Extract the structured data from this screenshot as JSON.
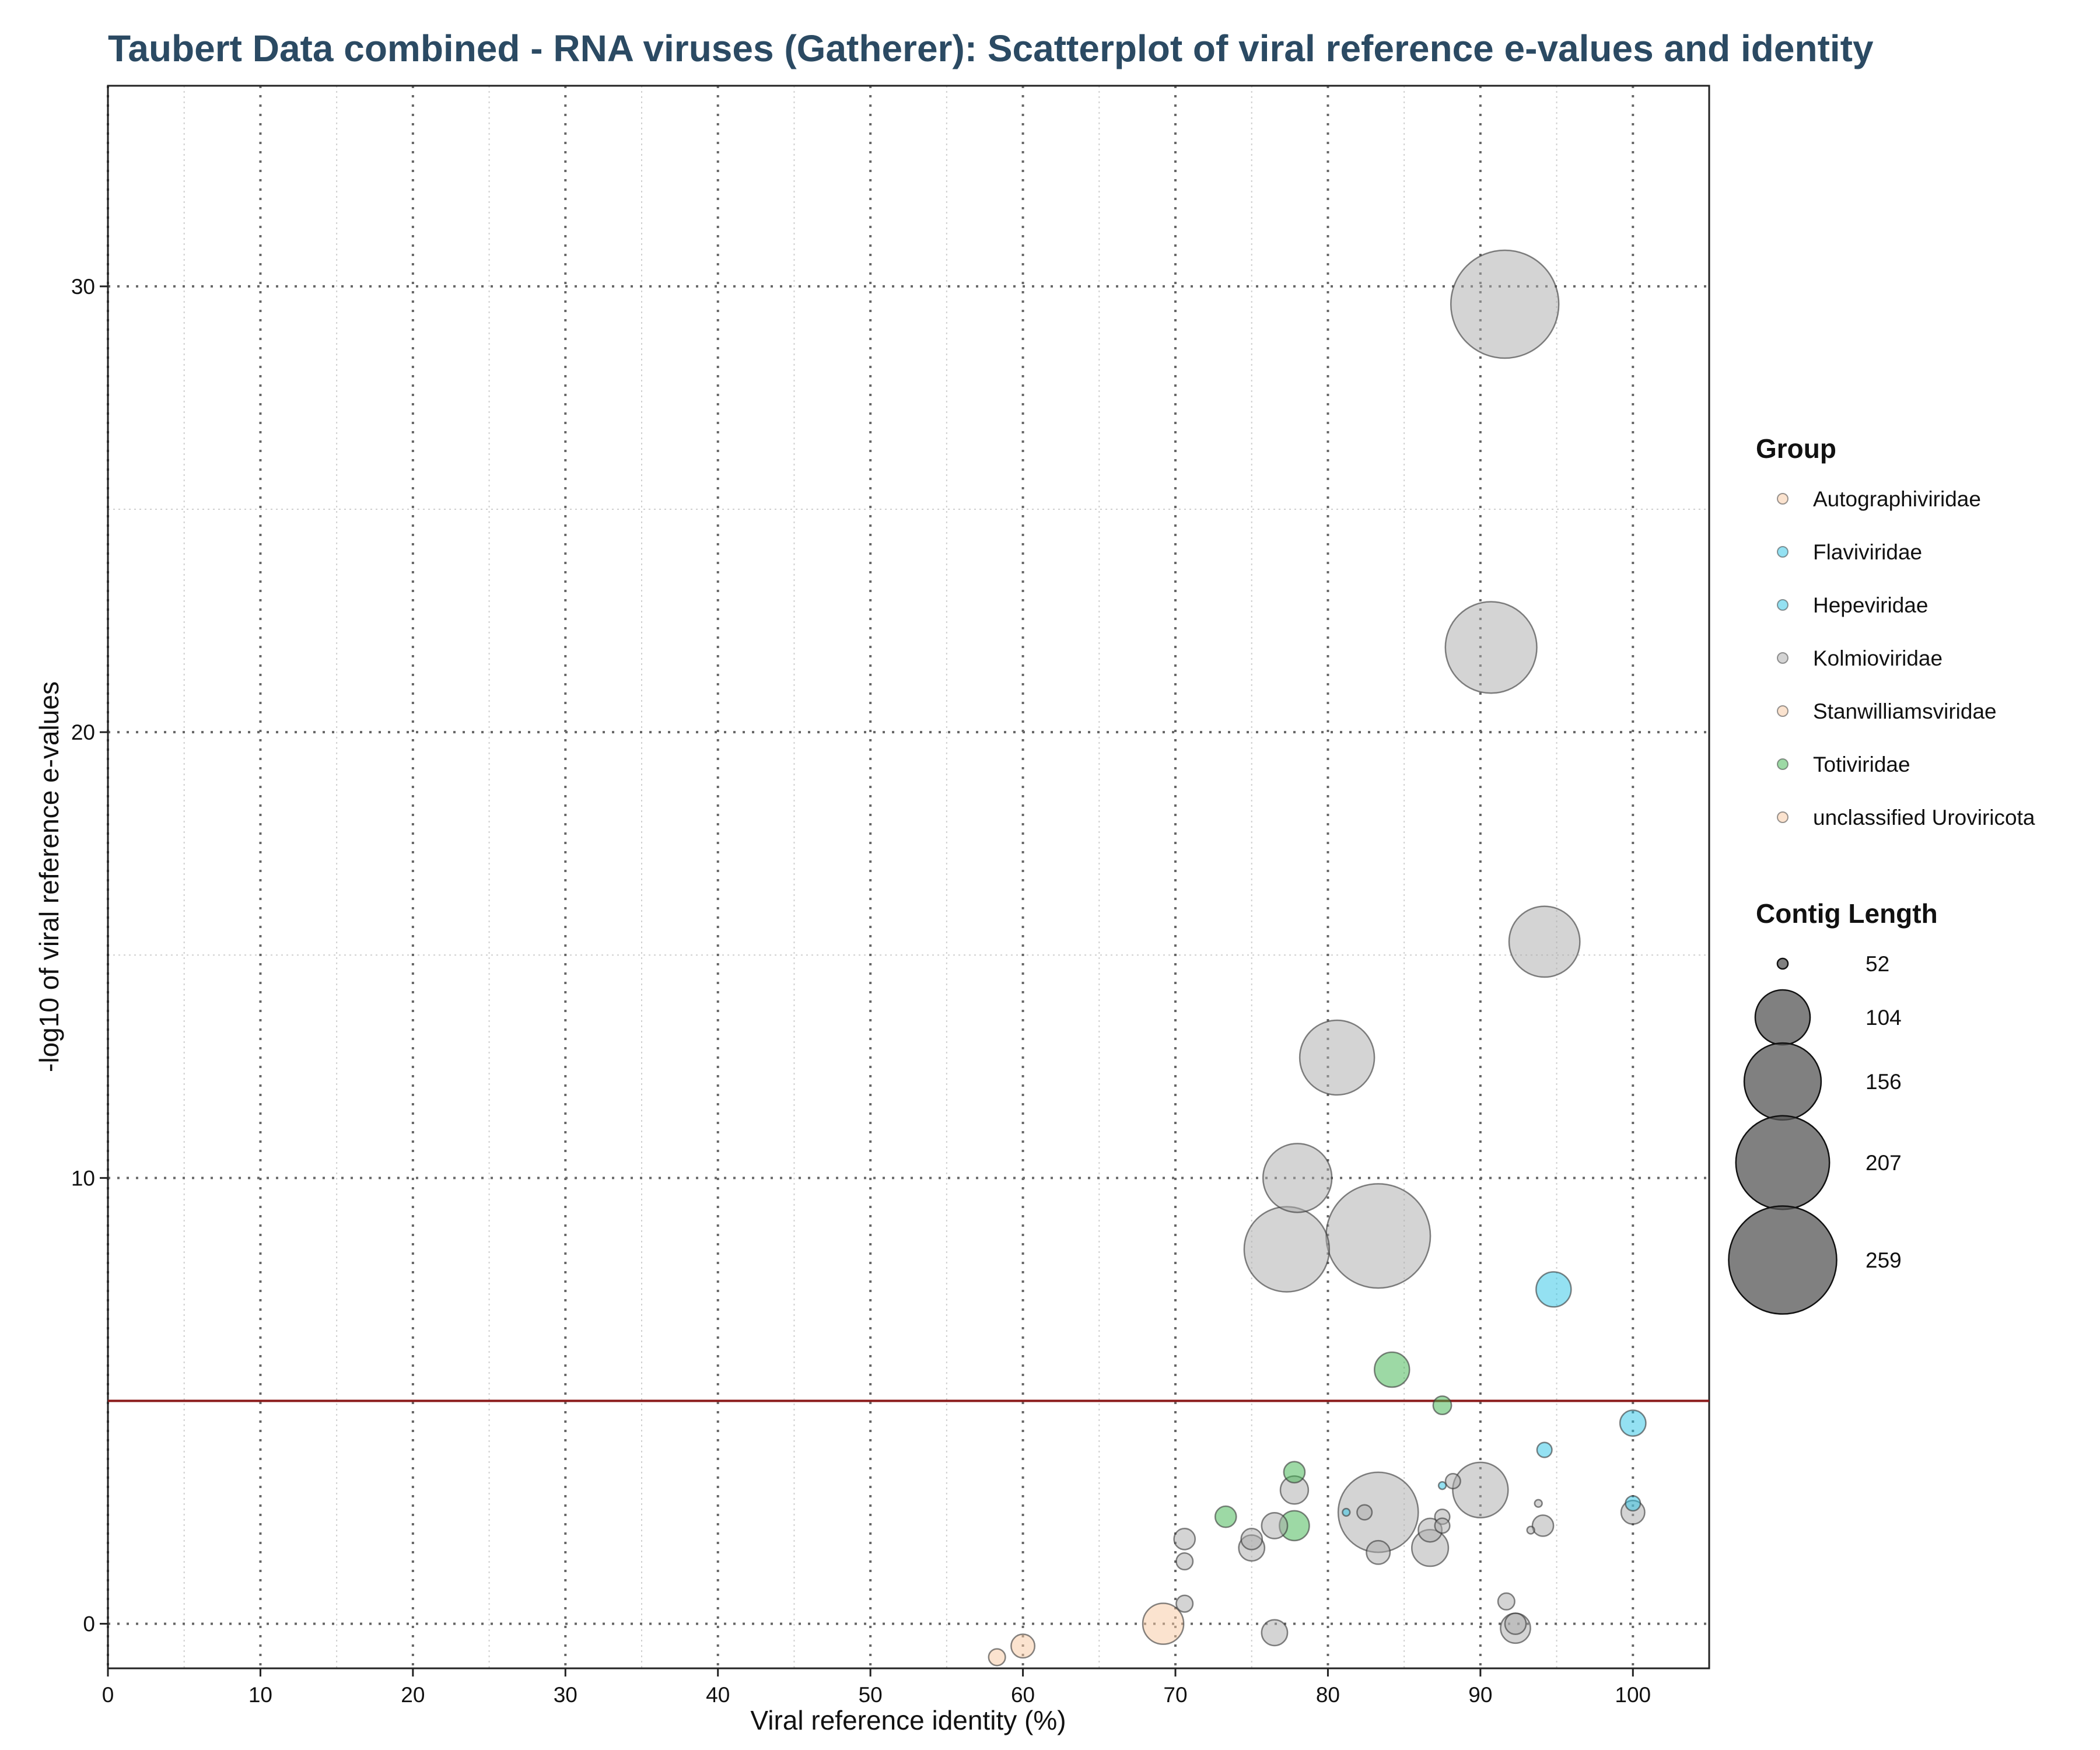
{
  "chart_data": {
    "type": "scatter",
    "title": "Taubert Data combined - RNA viruses (Gatherer): Scatterplot of viral reference e-values and identity",
    "xlabel": "Viral reference identity (%)",
    "ylabel": "-log10 of viral reference e-values",
    "xlim": [
      0,
      105
    ],
    "ylim": [
      -1,
      34.5
    ],
    "x_ticks": [
      "0",
      "10",
      "20",
      "30",
      "40",
      "50",
      "60",
      "70",
      "80",
      "90",
      "100"
    ],
    "y_ticks": [
      "0",
      "10",
      "20",
      "30"
    ],
    "grid": true,
    "threshold_line": {
      "y": 5,
      "color": "#8b1a1a"
    },
    "size_legend": {
      "title": "Contig Length",
      "entries": [
        {
          "label": "52",
          "value": 52
        },
        {
          "label": "104",
          "value": 104
        },
        {
          "label": "156",
          "value": 156
        },
        {
          "label": "207",
          "value": 207
        },
        {
          "label": "259",
          "value": 259
        }
      ]
    },
    "groups": [
      {
        "name": "Autographiviridae",
        "color": "#f7c8a0"
      },
      {
        "name": "Flaviviridae",
        "color": "#29c4e6"
      },
      {
        "name": "Hepeviridae",
        "color": "#29c4e6"
      },
      {
        "name": "Kolmioviridae",
        "color": "#aaaaaa"
      },
      {
        "name": "Stanwilliamsviridae",
        "color": "#f7c8a0"
      },
      {
        "name": "Totiviridae",
        "color": "#3cb44b"
      },
      {
        "name": "unclassified Uroviricota",
        "color": "#f7c8a0"
      }
    ],
    "legend_title": "Group",
    "legend_placement": "right",
    "points": [
      {
        "x": 91.6,
        "y": 29.6,
        "size": 259,
        "group": "Kolmioviridae"
      },
      {
        "x": 90.7,
        "y": 21.9,
        "size": 200,
        "group": "Kolmioviridae"
      },
      {
        "x": 94.2,
        "y": 15.3,
        "size": 140,
        "group": "Kolmioviridae"
      },
      {
        "x": 80.6,
        "y": 12.7,
        "size": 150,
        "group": "Kolmioviridae"
      },
      {
        "x": 78.0,
        "y": 10.0,
        "size": 135,
        "group": "Kolmioviridae"
      },
      {
        "x": 83.3,
        "y": 8.7,
        "size": 245,
        "group": "Kolmioviridae"
      },
      {
        "x": 77.3,
        "y": 8.4,
        "size": 180,
        "group": "Kolmioviridae"
      },
      {
        "x": 83.3,
        "y": 2.5,
        "size": 165,
        "group": "Kolmioviridae"
      },
      {
        "x": 90.0,
        "y": 3.0,
        "size": 105,
        "group": "Kolmioviridae"
      },
      {
        "x": 94.8,
        "y": 7.5,
        "size": 72,
        "group": "Flaviviridae"
      },
      {
        "x": 84.2,
        "y": 5.7,
        "size": 72,
        "group": "Totiviridae"
      },
      {
        "x": 87.5,
        "y": 4.9,
        "size": 56,
        "group": "Totiviridae"
      },
      {
        "x": 100.0,
        "y": 4.5,
        "size": 62,
        "group": "Flaviviridae"
      },
      {
        "x": 94.2,
        "y": 3.9,
        "size": 54,
        "group": "Hepeviridae"
      },
      {
        "x": 77.8,
        "y": 3.4,
        "size": 58,
        "group": "Totiviridae"
      },
      {
        "x": 77.8,
        "y": 3.0,
        "size": 64,
        "group": "Kolmioviridae"
      },
      {
        "x": 88.2,
        "y": 3.2,
        "size": 54,
        "group": "Kolmioviridae"
      },
      {
        "x": 87.5,
        "y": 3.1,
        "size": 51,
        "group": "Flaviviridae"
      },
      {
        "x": 93.8,
        "y": 2.7,
        "size": 51,
        "group": "Kolmioviridae"
      },
      {
        "x": 100.0,
        "y": 2.7,
        "size": 54,
        "group": "Flaviviridae"
      },
      {
        "x": 100.0,
        "y": 2.5,
        "size": 60,
        "group": "Kolmioviridae"
      },
      {
        "x": 81.2,
        "y": 2.5,
        "size": 51,
        "group": "Flaviviridae"
      },
      {
        "x": 82.4,
        "y": 2.5,
        "size": 54,
        "group": "Kolmioviridae"
      },
      {
        "x": 73.3,
        "y": 2.4,
        "size": 58,
        "group": "Totiviridae"
      },
      {
        "x": 87.5,
        "y": 2.4,
        "size": 54,
        "group": "Kolmioviridae"
      },
      {
        "x": 87.5,
        "y": 2.2,
        "size": 54,
        "group": "Kolmioviridae"
      },
      {
        "x": 76.5,
        "y": 2.2,
        "size": 62,
        "group": "Kolmioviridae"
      },
      {
        "x": 77.8,
        "y": 2.2,
        "size": 66,
        "group": "Totiviridae"
      },
      {
        "x": 94.1,
        "y": 2.2,
        "size": 58,
        "group": "Kolmioviridae"
      },
      {
        "x": 86.7,
        "y": 2.1,
        "size": 60,
        "group": "Kolmioviridae"
      },
      {
        "x": 93.3,
        "y": 2.1,
        "size": 51,
        "group": "Kolmioviridae"
      },
      {
        "x": 75.0,
        "y": 1.9,
        "size": 58,
        "group": "Kolmioviridae"
      },
      {
        "x": 70.6,
        "y": 1.9,
        "size": 58,
        "group": "Kolmioviridae"
      },
      {
        "x": 75.0,
        "y": 1.7,
        "size": 62,
        "group": "Kolmioviridae"
      },
      {
        "x": 86.7,
        "y": 1.7,
        "size": 74,
        "group": "Kolmioviridae"
      },
      {
        "x": 83.3,
        "y": 1.6,
        "size": 60,
        "group": "Kolmioviridae"
      },
      {
        "x": 70.6,
        "y": 1.4,
        "size": 55,
        "group": "Kolmioviridae"
      },
      {
        "x": 70.6,
        "y": 0.45,
        "size": 55,
        "group": "Kolmioviridae"
      },
      {
        "x": 91.7,
        "y": 0.5,
        "size": 55,
        "group": "Kolmioviridae"
      },
      {
        "x": 69.2,
        "y": 0.0,
        "size": 80,
        "group": "Autographiviridae"
      },
      {
        "x": 92.3,
        "y": 0.0,
        "size": 58,
        "group": "Kolmioviridae"
      },
      {
        "x": 92.3,
        "y": -0.1,
        "size": 66,
        "group": "Kolmioviridae"
      },
      {
        "x": 76.5,
        "y": -0.2,
        "size": 62,
        "group": "Kolmioviridae"
      },
      {
        "x": 60.0,
        "y": -0.5,
        "size": 60,
        "group": "Stanwilliamsviridae"
      },
      {
        "x": 58.3,
        "y": -0.75,
        "size": 55,
        "group": "unclassified Uroviricota"
      }
    ]
  }
}
